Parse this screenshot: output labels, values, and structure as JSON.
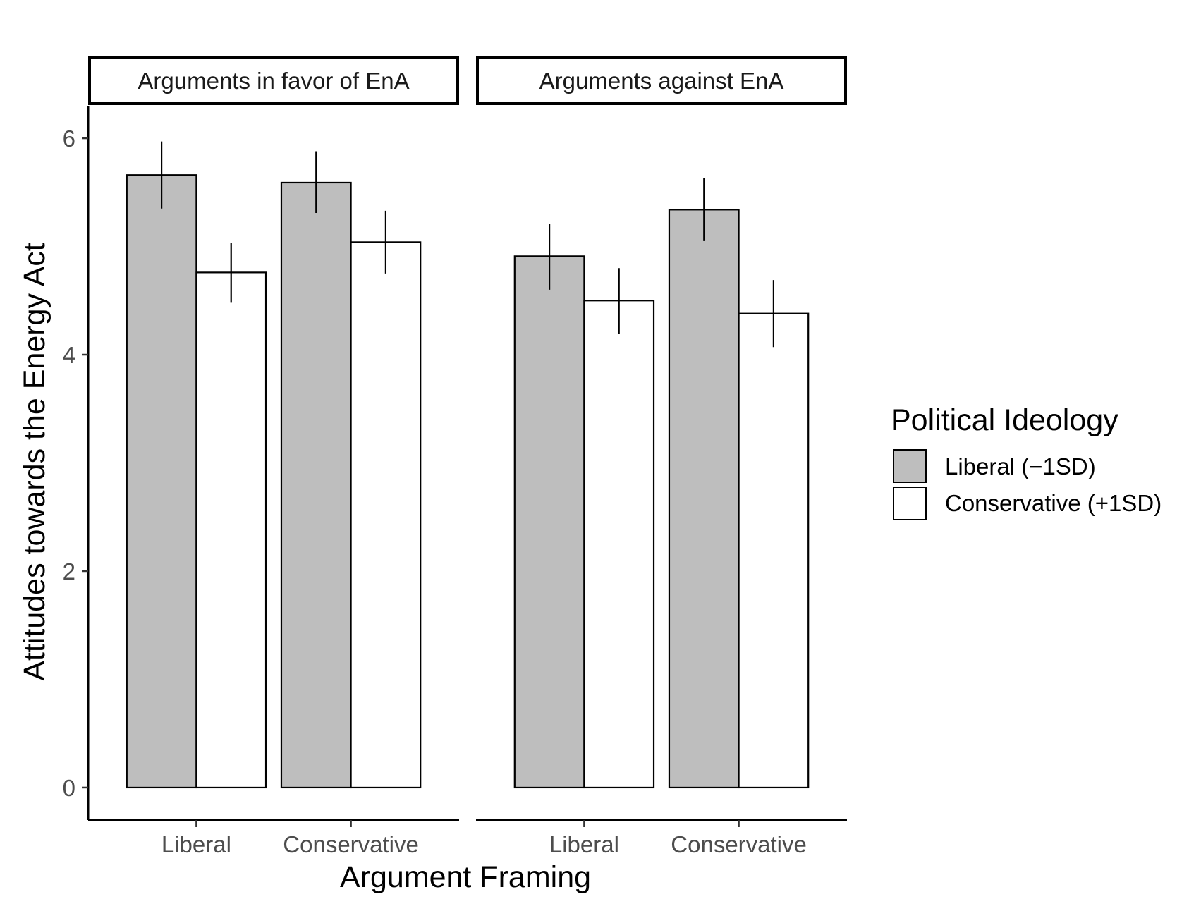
{
  "chart_data": {
    "type": "bar",
    "xlabel": "Argument Framing",
    "ylabel": "Attitudes towards the Energy Act",
    "ylim": [
      -0.3,
      6.3
    ],
    "yticks": [
      0,
      2,
      4,
      6
    ],
    "categories": [
      "Liberal",
      "Conservative"
    ],
    "legend": {
      "title": "Political Ideology",
      "placement": "right",
      "entries": [
        {
          "label": "Liberal (−1SD)",
          "color": "#bebebe"
        },
        {
          "label": "Conservative (+1SD)",
          "color": "#ffffff"
        }
      ]
    },
    "panels": [
      {
        "title": "Arguments in favor of EnA",
        "series": [
          {
            "name": "Liberal (−1SD)",
            "values": [
              5.66,
              5.59
            ],
            "err_low": [
              5.35,
              5.31
            ],
            "err_high": [
              5.97,
              5.88
            ]
          },
          {
            "name": "Conservative (+1SD)",
            "values": [
              4.76,
              5.04
            ],
            "err_low": [
              4.48,
              4.75
            ],
            "err_high": [
              5.03,
              5.33
            ]
          }
        ]
      },
      {
        "title": "Arguments against EnA",
        "series": [
          {
            "name": "Liberal (−1SD)",
            "values": [
              4.91,
              5.34
            ],
            "err_low": [
              4.6,
              5.05
            ],
            "err_high": [
              5.21,
              5.63
            ]
          },
          {
            "name": "Conservative (+1SD)",
            "values": [
              4.5,
              4.38
            ],
            "err_low": [
              4.19,
              4.07
            ],
            "err_high": [
              4.8,
              4.69
            ]
          }
        ]
      }
    ],
    "grid": false
  }
}
